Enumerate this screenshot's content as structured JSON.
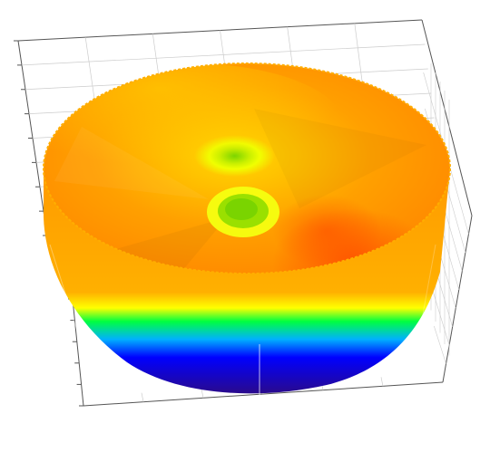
{
  "chart_data": {
    "type": "surface-3d",
    "title": "",
    "xlabel": "",
    "ylabel": "",
    "zlabel": "",
    "grid": true,
    "legend": "none",
    "shape": "disc",
    "surface_colormap": [
      "#2a0a8c",
      "#0000ff",
      "#00a0ff",
      "#00ff60",
      "#ffff00",
      "#ffb000",
      "#ff3000"
    ],
    "top_surface": {
      "rim_color": "#ff8a00",
      "center_color": "#7ad400",
      "hotspot_color": "#ff5a00",
      "center_ring_color": "#f0ff00"
    },
    "axes_color": "#555555",
    "grid_color": "#cccccc"
  }
}
